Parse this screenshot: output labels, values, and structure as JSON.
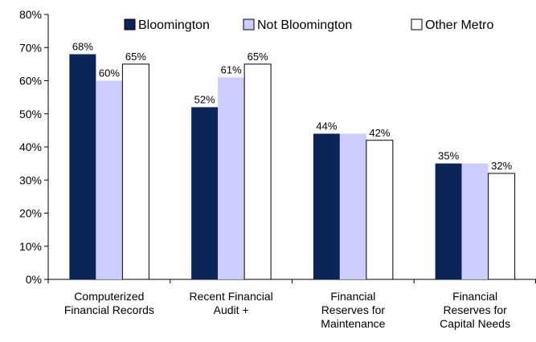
{
  "chart_data": {
    "type": "bar",
    "categories": [
      "Computerized\nFinancial Records",
      "Recent Financial\nAudit +",
      "Financial\nReserves for\nMaintenance",
      "Financial\nReserves for\nCapital Needs"
    ],
    "series": [
      {
        "name": "Bloomington",
        "color": "#0b2559",
        "values": [
          68,
          52,
          44,
          35
        ],
        "value_labels": [
          "68%",
          "52%",
          "44%",
          "35%"
        ]
      },
      {
        "name": "Not Bloomington",
        "color": "#ccccff",
        "values": [
          60,
          61,
          44,
          35
        ],
        "value_labels": [
          "60%",
          "61%",
          null,
          null
        ]
      },
      {
        "name": "Other Metro",
        "color": "#ffffff",
        "values": [
          65,
          65,
          42,
          32
        ],
        "value_labels": [
          "65%",
          "65%",
          "42%",
          "32%"
        ]
      }
    ],
    "ylim": [
      0,
      80
    ],
    "yticks": [
      {
        "value": 0,
        "label": "0%"
      },
      {
        "value": 10,
        "label": "10%"
      },
      {
        "value": 20,
        "label": "20%"
      },
      {
        "value": 30,
        "label": "30%"
      },
      {
        "value": 40,
        "label": "40%"
      },
      {
        "value": 50,
        "label": "50%"
      },
      {
        "value": 60,
        "label": "60%"
      },
      {
        "value": 70,
        "label": "70%"
      },
      {
        "value": 80,
        "label": "80%"
      }
    ],
    "legend": "top"
  }
}
